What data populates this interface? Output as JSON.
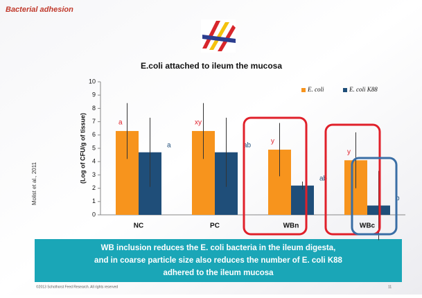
{
  "header": "Bacterial adhesion",
  "source": "Molist et al., 2011",
  "conclusion": [
    "WB inclusion reduces the E. coli bacteria in the ileum digesta,",
    "and in coarse particle size also reduces the number of E. coli K88",
    "adhered to the ileum mucosa"
  ],
  "footer": "©2013 Schothorst Feed Research. All rights reserved",
  "page_number": "11",
  "chart_data": {
    "type": "bar",
    "title": "E.coli attached to ileum the mucosa",
    "y_label": "(Log of CFU/g of tissue)",
    "categories": [
      "NC",
      "PC",
      "WBn",
      "WBc"
    ],
    "series": [
      {
        "name": "E. coli",
        "color": "#f7941d",
        "values": [
          6.3,
          6.3,
          4.9,
          4.1
        ],
        "errors": [
          2.1,
          2.1,
          2.0,
          2.1
        ],
        "letters": [
          "a",
          "xy",
          "y",
          "y"
        ]
      },
      {
        "name": "E. coli K88",
        "color": "#1f4e79",
        "values": [
          4.7,
          4.7,
          2.2,
          0.7
        ],
        "errors": [
          2.6,
          2.6,
          0.3,
          2.6
        ],
        "letters": [
          "a",
          "ab",
          "ab",
          "b"
        ]
      }
    ],
    "ylim": [
      0,
      10
    ],
    "yticks": [
      0,
      1,
      2,
      3,
      4,
      5,
      6,
      7,
      8,
      9,
      10
    ],
    "grid": false,
    "legend": "top-right"
  }
}
